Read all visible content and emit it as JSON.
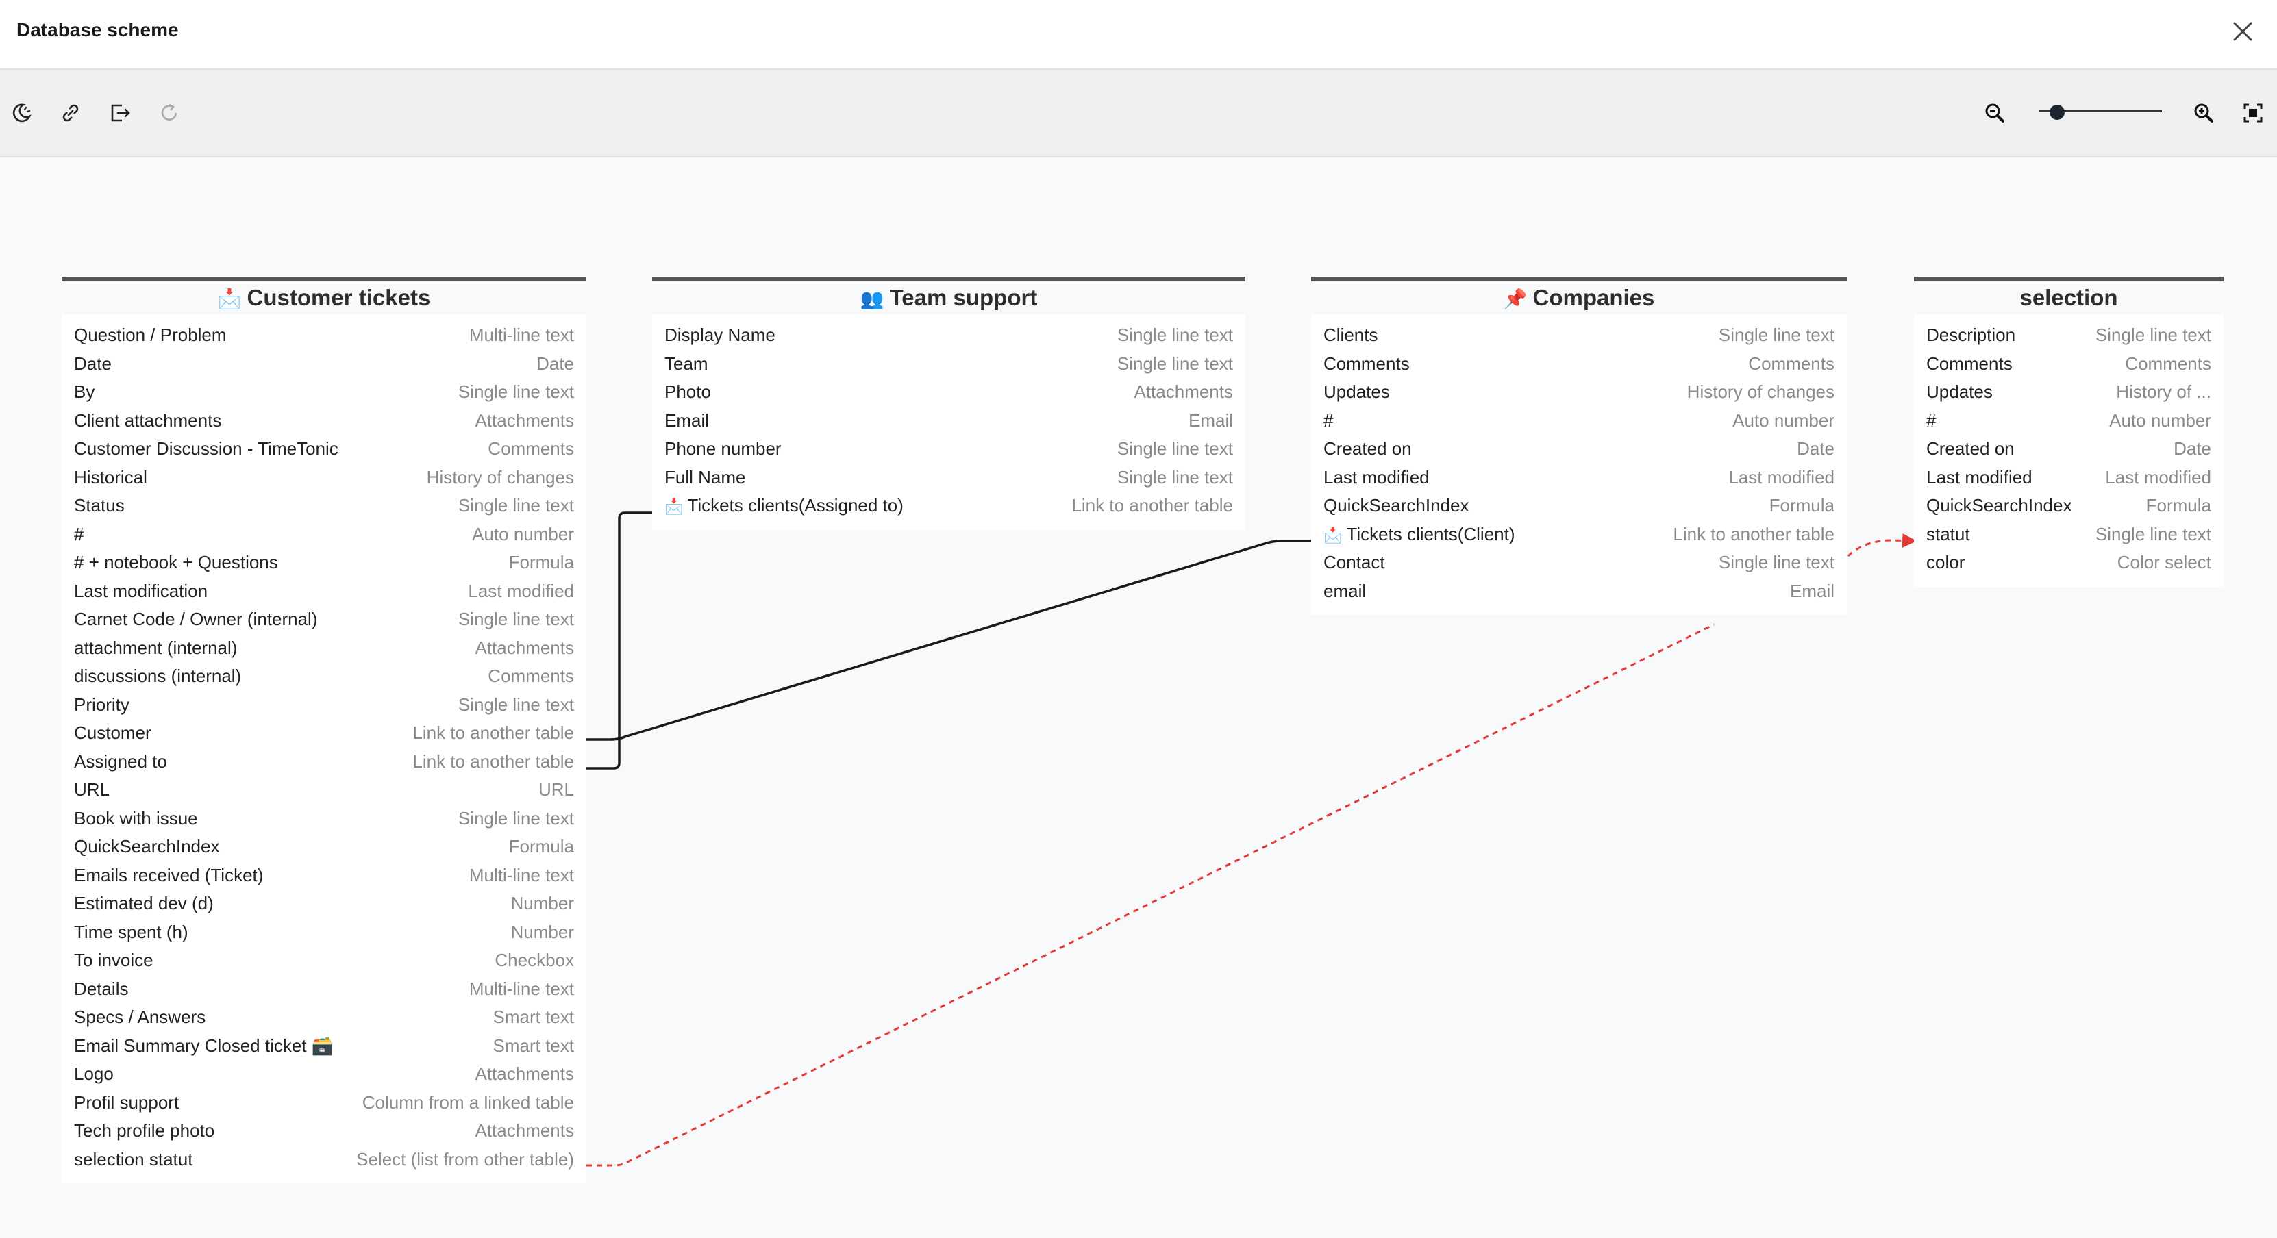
{
  "window": {
    "title": "Database scheme"
  },
  "icons": {
    "close": "close-icon",
    "theme": "moon-sun-icon",
    "link": "link-icon",
    "export": "export-icon",
    "refresh": "refresh-icon",
    "zoom_out": "zoom-out-icon",
    "zoom_in": "zoom-in-icon",
    "fit": "fit-screen-icon"
  },
  "zoom": {
    "level": 0.15
  },
  "colors": {
    "link_solid": "#1a1a1a",
    "link_dashed": "#e53935"
  },
  "tables": [
    {
      "emoji": "📩",
      "title": "Customer tickets",
      "fields": [
        {
          "name": "Question / Problem",
          "type": "Multi-line text"
        },
        {
          "name": "Date",
          "type": "Date"
        },
        {
          "name": "By",
          "type": "Single line text"
        },
        {
          "name": "Client attachments",
          "type": "Attachments"
        },
        {
          "name": "Customer Discussion - TimeTonic",
          "type": "Comments"
        },
        {
          "name": "Historical",
          "type": "History of changes"
        },
        {
          "name": "Status",
          "type": "Single line text"
        },
        {
          "name": "#",
          "type": "Auto number"
        },
        {
          "name": "# + notebook + Questions",
          "type": "Formula"
        },
        {
          "name": "Last modification",
          "type": "Last modified"
        },
        {
          "name": "Carnet Code / Owner (internal)",
          "type": "Single line text"
        },
        {
          "name": "attachment (internal)",
          "type": "Attachments"
        },
        {
          "name": "discussions (internal)",
          "type": "Comments"
        },
        {
          "name": "Priority",
          "type": "Single line text"
        },
        {
          "name": "Customer",
          "type": "Link to another table"
        },
        {
          "name": "Assigned to",
          "type": "Link to another table"
        },
        {
          "name": "URL",
          "type": "URL"
        },
        {
          "name": "Book with issue",
          "type": "Single line text"
        },
        {
          "name": "QuickSearchIndex",
          "type": "Formula"
        },
        {
          "name": "Emails received (Ticket)",
          "type": "Multi-line text"
        },
        {
          "name": "Estimated dev (d)",
          "type": "Number"
        },
        {
          "name": "Time spent (h)",
          "type": "Number"
        },
        {
          "name": "To invoice",
          "type": "Checkbox"
        },
        {
          "name": "Details",
          "type": "Multi-line text"
        },
        {
          "name": "Specs / Answers",
          "type": "Smart text"
        },
        {
          "name": "Email Summary Closed ticket 🗃️",
          "type": "Smart text"
        },
        {
          "name": "Logo",
          "type": "Attachments"
        },
        {
          "name": "Profil support",
          "type": "Column from a linked table"
        },
        {
          "name": "Tech profile photo",
          "type": "Attachments"
        },
        {
          "name": "selection statut",
          "type": "Select (list from other table)"
        }
      ]
    },
    {
      "emoji": "👥",
      "title": "Team support",
      "fields": [
        {
          "name": "Display Name",
          "type": "Single line text"
        },
        {
          "name": "Team",
          "type": "Single line text"
        },
        {
          "name": "Photo",
          "type": "Attachments"
        },
        {
          "name": "Email",
          "type": "Email"
        },
        {
          "name": "Phone number",
          "type": "Single line text"
        },
        {
          "name": "Full Name",
          "type": "Single line text"
        },
        {
          "name": "Tickets clients(Assigned to)",
          "type": "Link to another table",
          "emoji": "📩"
        }
      ]
    },
    {
      "emoji": "📌",
      "title": "Companies",
      "fields": [
        {
          "name": "Clients",
          "type": "Single line text"
        },
        {
          "name": "Comments",
          "type": "Comments"
        },
        {
          "name": "Updates",
          "type": "History of changes"
        },
        {
          "name": "#",
          "type": "Auto number"
        },
        {
          "name": "Created on",
          "type": "Date"
        },
        {
          "name": "Last modified",
          "type": "Last modified"
        },
        {
          "name": "QuickSearchIndex",
          "type": "Formula"
        },
        {
          "name": "Tickets clients(Client)",
          "type": "Link to another table",
          "emoji": "📩"
        },
        {
          "name": "Contact",
          "type": "Single line text"
        },
        {
          "name": "email",
          "type": "Email"
        }
      ]
    },
    {
      "emoji": "",
      "title": "selection",
      "fields": [
        {
          "name": "Description",
          "type": "Single line text"
        },
        {
          "name": "Comments",
          "type": "Comments"
        },
        {
          "name": "Updates",
          "type": "History of ..."
        },
        {
          "name": "#",
          "type": "Auto number"
        },
        {
          "name": "Created on",
          "type": "Date"
        },
        {
          "name": "Last modified",
          "type": "Last modified"
        },
        {
          "name": "QuickSearchIndex",
          "type": "Formula"
        },
        {
          "name": "statut",
          "type": "Single line text"
        },
        {
          "name": "color",
          "type": "Color select"
        }
      ]
    }
  ]
}
